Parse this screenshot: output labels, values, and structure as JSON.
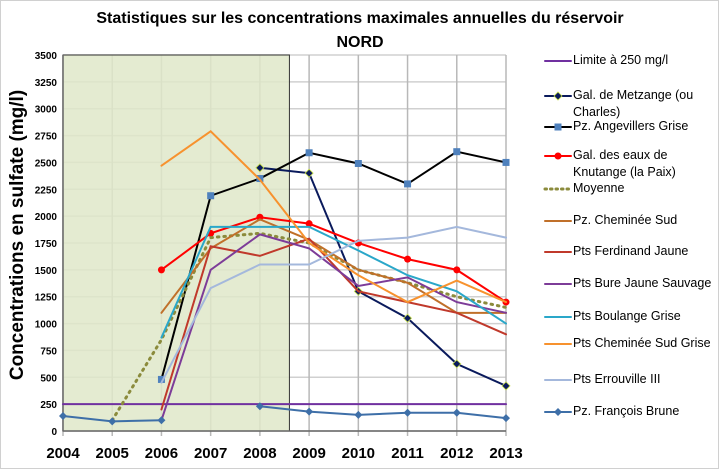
{
  "chart_data": {
    "type": "line",
    "title_line1": "Statistiques sur les concentrations maximales annuelles du réservoir",
    "title_line2": "NORD",
    "xlabel": "",
    "ylabel": "Concentrations en sulfate  (mg/l)",
    "x": [
      2004,
      2005,
      2006,
      2007,
      2008,
      2009,
      2010,
      2011,
      2012,
      2013
    ],
    "xlim": [
      2004,
      2013
    ],
    "ylim": [
      0,
      3500
    ],
    "yticks": [
      0,
      250,
      500,
      750,
      1000,
      1250,
      1500,
      1750,
      2000,
      2250,
      2500,
      2750,
      3000,
      3250,
      3500
    ],
    "grid": true,
    "legend_position": "right",
    "shaded_region": {
      "from": 2004,
      "to": 2008.6,
      "color": "#dfe8c9"
    },
    "series": [
      {
        "name": "Limite à 250 mg/l",
        "color": "#7030a0",
        "marker": "none",
        "values": [
          250,
          250,
          250,
          250,
          250,
          250,
          250,
          250,
          250,
          250
        ]
      },
      {
        "name": "Gal. de Metzange (ou Charles)",
        "color": "#0a1a5c",
        "marker": "diamond",
        "values": [
          null,
          null,
          null,
          null,
          2450,
          2400,
          1300,
          1050,
          625,
          420
        ]
      },
      {
        "name": "Pz. Angevillers Grise",
        "color": "#000000",
        "marker": "square",
        "markerColor": "#4f81bd",
        "values": [
          null,
          null,
          480,
          2190,
          2350,
          2590,
          2490,
          2300,
          2600,
          2500
        ]
      },
      {
        "name": "Gal. des eaux de Knutange (la Paix)",
        "color": "#ff0000",
        "marker": "circle",
        "values": [
          null,
          null,
          1500,
          1840,
          1990,
          1930,
          1750,
          1600,
          1500,
          1200
        ]
      },
      {
        "name": "Moyenne",
        "color": "#8b8b3c",
        "marker": "none",
        "dotted": true,
        "values": [
          null,
          100,
          850,
          1800,
          1840,
          1750,
          1500,
          1380,
          1250,
          1150
        ]
      },
      {
        "name": "Pz. Cheminée Sud",
        "color": "#c0702a",
        "marker": "none",
        "values": [
          null,
          null,
          1100,
          1700,
          1970,
          1780,
          1500,
          1380,
          1100,
          1100
        ]
      },
      {
        "name": "Pts Ferdinand Jaune",
        "color": "#c0392b",
        "marker": "none",
        "values": [
          null,
          null,
          200,
          1720,
          1630,
          1790,
          1300,
          1200,
          1100,
          900
        ]
      },
      {
        "name": "Pts Bure Jaune Sauvage",
        "color": "#7d3c98",
        "marker": "none",
        "values": [
          null,
          null,
          100,
          1500,
          1830,
          1700,
          1350,
          1430,
          1200,
          1100
        ]
      },
      {
        "name": "Pts Boulange Grise",
        "color": "#2aa7c9",
        "marker": "none",
        "values": [
          null,
          null,
          870,
          1900,
          1900,
          1900,
          1680,
          1450,
          1300,
          1000
        ]
      },
      {
        "name": "Pts Cheminée Sud Grise",
        "color": "#f7922e",
        "marker": "none",
        "values": [
          null,
          null,
          2470,
          2790,
          2340,
          1750,
          1450,
          1200,
          1400,
          1200
        ]
      },
      {
        "name": "Pts Errouville III",
        "color": "#a4b8dc",
        "marker": "none",
        "values": [
          null,
          null,
          450,
          1330,
          1550,
          1550,
          1770,
          1800,
          1900,
          1800
        ]
      },
      {
        "name": "Pz. François Brune",
        "color": "#3e6fa8",
        "marker": "diamond",
        "values": [
          140,
          90,
          100,
          null,
          230,
          180,
          150,
          170,
          170,
          120
        ]
      }
    ]
  }
}
